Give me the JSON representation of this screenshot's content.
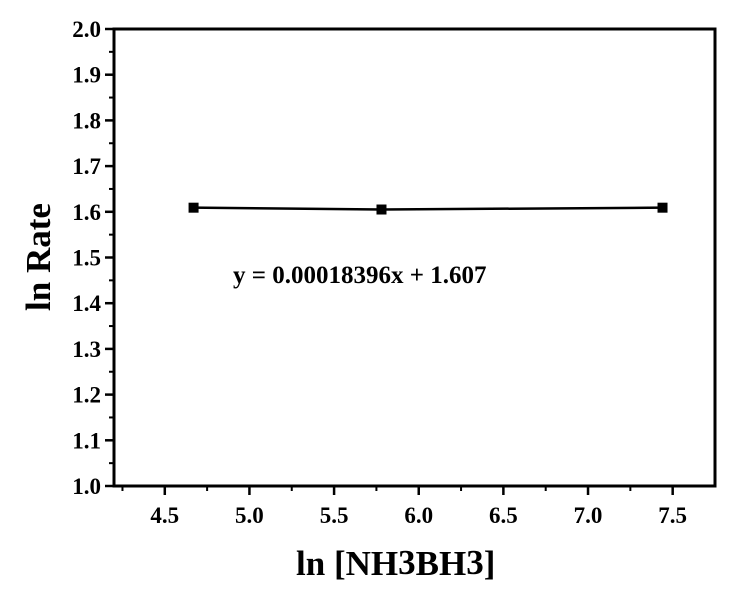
{
  "chart_data": {
    "type": "line",
    "xlabel_main": "ln [NH",
    "xlabel_sub1": "3",
    "xlabel_mid": "BH",
    "xlabel_sub2": "3",
    "xlabel_end": "]",
    "ylabel": "ln Rate",
    "xlim": [
      4.2,
      7.75
    ],
    "ylim": [
      1.0,
      2.0
    ],
    "x_ticks": [
      4.5,
      5.0,
      5.5,
      6.0,
      6.5,
      7.0,
      7.5
    ],
    "x_tick_labels": [
      "4.5",
      "5.0",
      "5.5",
      "6.0",
      "6.5",
      "7.0",
      "7.5"
    ],
    "y_ticks": [
      1.0,
      1.1,
      1.2,
      1.3,
      1.4,
      1.5,
      1.6,
      1.7,
      1.8,
      1.9,
      2.0
    ],
    "y_tick_labels": [
      "1.0",
      "1.1",
      "1.2",
      "1.3",
      "1.4",
      "1.5",
      "1.6",
      "1.7",
      "1.8",
      "1.9",
      "2.0"
    ],
    "series": [
      {
        "x": [
          4.67,
          5.78,
          7.44
        ],
        "y": [
          1.609,
          1.605,
          1.609
        ],
        "marker": "square",
        "color": "#000000"
      }
    ],
    "annotation": "y = 0.00018396x + 1.607",
    "grid": false
  }
}
